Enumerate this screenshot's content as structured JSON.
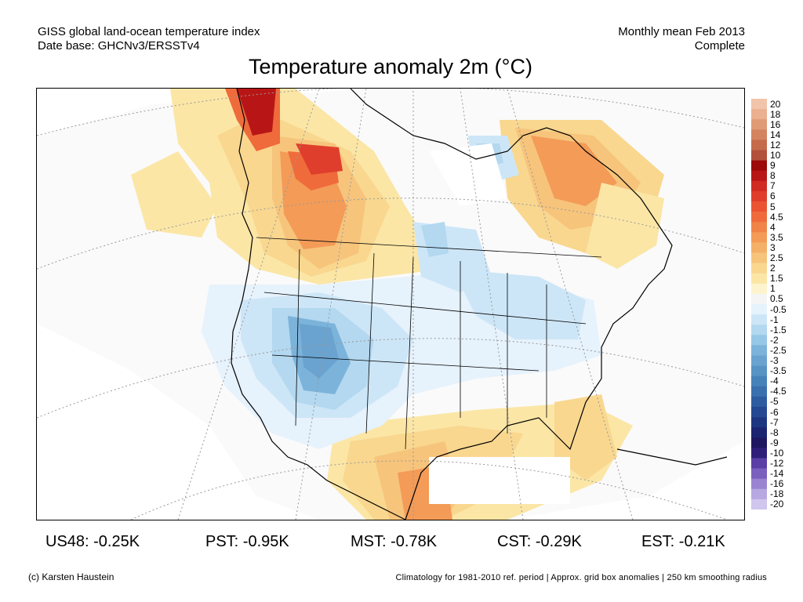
{
  "header": {
    "left_line1": "GISS global land-ocean temperature index",
    "left_line2": "Date base: GHCNv3/ERSSTv4",
    "right_line1": "Monthly mean Feb 2013",
    "right_line2": "Complete"
  },
  "title": "Temperature anomaly 2m (°C)",
  "colorbar": {
    "labels": [
      "20",
      "18",
      "16",
      "14",
      "12",
      "10",
      "9",
      "8",
      "7",
      "6",
      "5",
      "4.5",
      "4",
      "3.5",
      "3",
      "2.5",
      "2",
      "1.5",
      "1",
      "0.5",
      "-0.5",
      "-1",
      "-1.5",
      "-2",
      "-2.5",
      "-3",
      "-3.5",
      "-4",
      "-4.5",
      "-5",
      "-6",
      "-7",
      "-8",
      "-9",
      "-10",
      "-12",
      "-14",
      "-16",
      "-18",
      "-20"
    ],
    "colors": [
      "#f2c4aa",
      "#ebb08f",
      "#e09a76",
      "#d4835f",
      "#c56b4b",
      "#b3503a",
      "#9c0a0a",
      "#b81616",
      "#d02a22",
      "#e03e2c",
      "#ea5433",
      "#ef6b3c",
      "#f08448",
      "#f39b57",
      "#f5b067",
      "#f7c47c",
      "#f9d78f",
      "#fbe6a6",
      "#fdf4cd",
      "#f5f5f5",
      "#e6f2fc",
      "#cde6f7",
      "#b3d8f0",
      "#97c7e6",
      "#7cb3da",
      "#6aa3cf",
      "#5793c4",
      "#4682ba",
      "#3a70ae",
      "#2e5ca1",
      "#244892",
      "#1d3682",
      "#1a2470",
      "#1f1860",
      "#2f1f7a",
      "#5b3fa6",
      "#7a5fbe",
      "#9a84d2",
      "#b7a8e2",
      "#d0c6ee"
    ]
  },
  "stats": [
    "US48: -0.25K",
    "PST: -0.95K",
    "MST: -0.78K",
    "CST: -0.29K",
    "EST: -0.21K"
  ],
  "footer": {
    "credit": "(c) Karsten Haustein",
    "method": "Climatology for 1981-2010 ref. period | Approx. grid box anomalies | 250 km smoothing radius"
  },
  "map": {
    "warm_colors": [
      "#fbe6a6",
      "#f9d78f",
      "#f7c47c",
      "#f39b57",
      "#ef6b3c",
      "#e03e2c",
      "#b81616"
    ],
    "cold_colors": [
      "#e6f2fc",
      "#cde6f7",
      "#b3d8f0",
      "#7cb3da",
      "#6aa3cf"
    ],
    "neutral_color": "#f5f5f5"
  }
}
